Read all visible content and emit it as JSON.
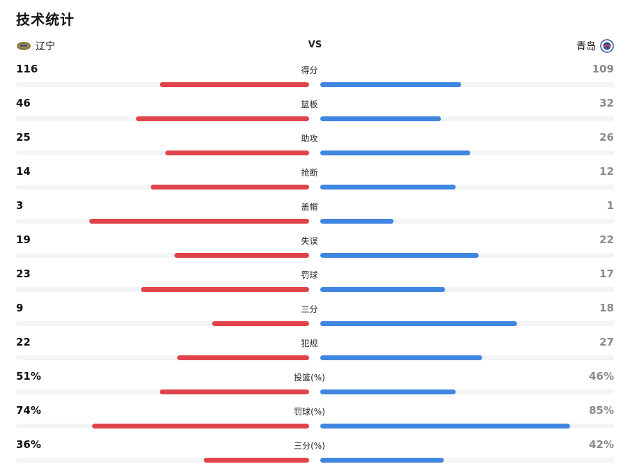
{
  "title": "技术统计",
  "teams": {
    "left": {
      "name": "辽宁",
      "icon": "liaoning-logo-icon",
      "color": "#e0444b"
    },
    "vs": "VS",
    "right": {
      "name": "青岛",
      "icon": "qingdao-logo-icon",
      "color": "#3f86e0"
    }
  },
  "stats": [
    {
      "label": "得分",
      "left": "116",
      "right": "109",
      "left_fill": 0.51,
      "right_fill": 0.48
    },
    {
      "label": "篮板",
      "left": "46",
      "right": "32",
      "left_fill": 0.59,
      "right_fill": 0.41
    },
    {
      "label": "助攻",
      "left": "25",
      "right": "26",
      "left_fill": 0.49,
      "right_fill": 0.51
    },
    {
      "label": "抢断",
      "left": "14",
      "right": "12",
      "left_fill": 0.54,
      "right_fill": 0.46
    },
    {
      "label": "盖帽",
      "left": "3",
      "right": "1",
      "left_fill": 0.75,
      "right_fill": 0.25
    },
    {
      "label": "失误",
      "left": "19",
      "right": "22",
      "left_fill": 0.46,
      "right_fill": 0.54
    },
    {
      "label": "罚球",
      "left": "23",
      "right": "17",
      "left_fill": 0.575,
      "right_fill": 0.425
    },
    {
      "label": "三分",
      "left": "9",
      "right": "18",
      "left_fill": 0.33,
      "right_fill": 0.67
    },
    {
      "label": "犯规",
      "left": "22",
      "right": "27",
      "left_fill": 0.45,
      "right_fill": 0.55
    },
    {
      "label": "投篮(%)",
      "left": "51%",
      "right": "46%",
      "left_fill": 0.51,
      "right_fill": 0.46
    },
    {
      "label": "罚球(%)",
      "left": "74%",
      "right": "85%",
      "left_fill": 0.74,
      "right_fill": 0.85
    },
    {
      "label": "三分(%)",
      "left": "36%",
      "right": "42%",
      "left_fill": 0.36,
      "right_fill": 0.42
    }
  ]
}
